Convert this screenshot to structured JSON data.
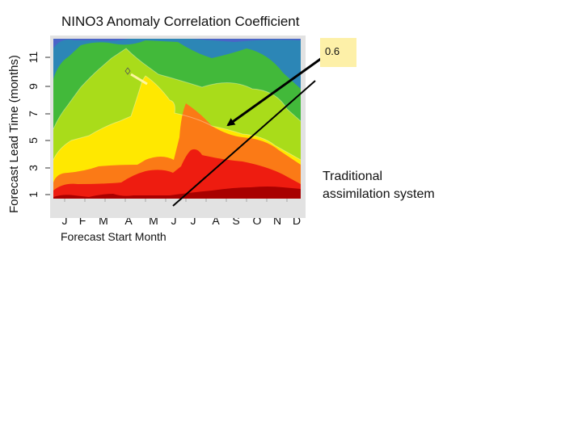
{
  "chart_data": {
    "type": "heatmap",
    "subtype": "filled-contour",
    "title": "NINO3 Anomaly Correlation Coefficient",
    "xlabel": "Forecast Start Month",
    "ylabel": "Forecast Lead Time (months)",
    "x_ticks": [
      "J",
      "F",
      "M",
      "A",
      "M",
      "J",
      "J",
      "A",
      "S",
      "O",
      "N",
      "D"
    ],
    "y_ticks": [
      "1",
      "3",
      "5",
      "7",
      "9",
      "11"
    ],
    "y_range": [
      0.5,
      12
    ],
    "contour_levels": [
      0.5,
      0.6,
      0.7,
      0.8,
      0.9
    ],
    "colors": {
      "above_0.9": "#a80000",
      "0.8_to_0.9": "#ee1c10",
      "0.7_to_0.8": "#fb7a16",
      "0.6_to_0.7": "#ffe800",
      "0.5_to_0.6": "#a9dc1a",
      "0.4_to_0.5": "#42b93a",
      "below_0.4": "#2c86b6",
      "lowest": "#4a64c8",
      "background": "#e2e2e2",
      "callout_fill": "#fdf0a8"
    },
    "annotations": [
      {
        "text": "0.6",
        "target": "0.6 contour line"
      },
      {
        "text": "Traditional assimilation system",
        "target": "chart"
      }
    ]
  }
}
